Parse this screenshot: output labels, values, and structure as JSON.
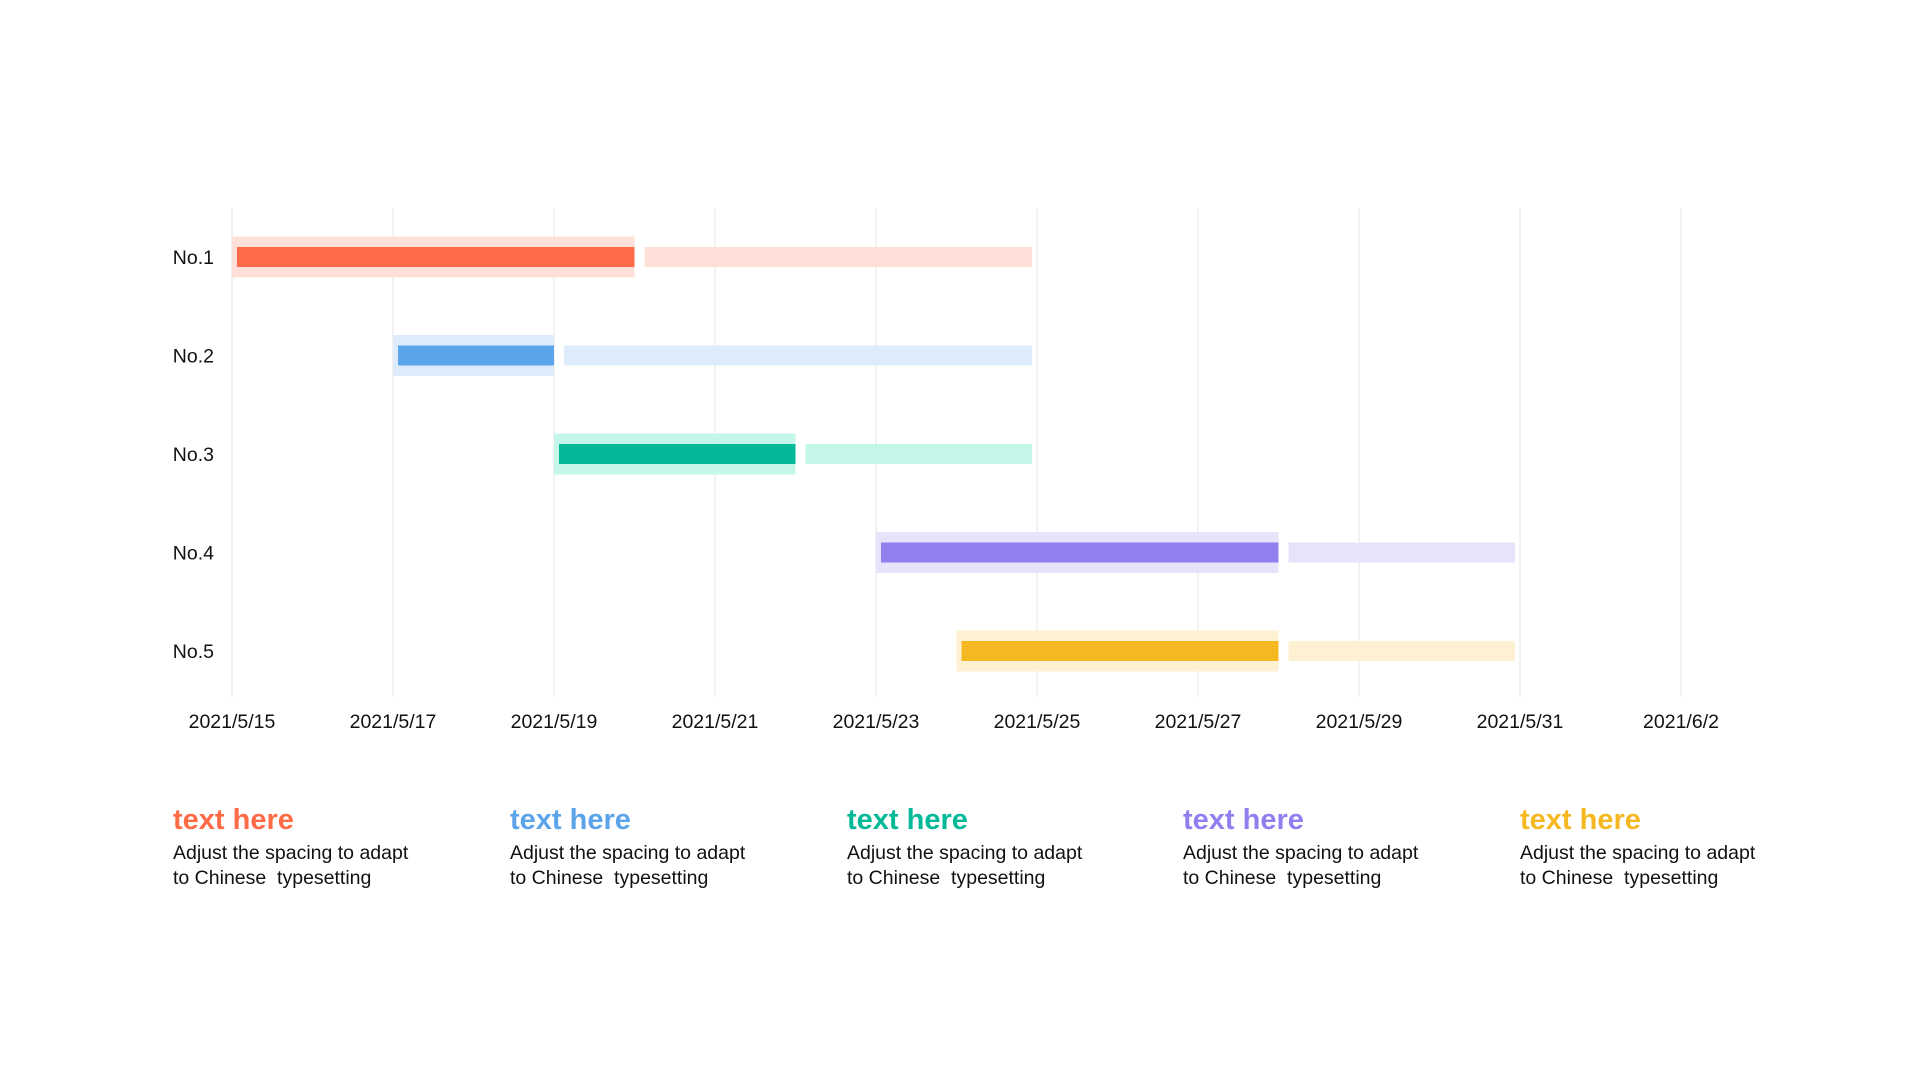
{
  "chart_data": {
    "type": "gantt",
    "x_ticks": [
      "2021/5/15",
      "2021/5/17",
      "2021/5/19",
      "2021/5/21",
      "2021/5/23",
      "2021/5/25",
      "2021/5/27",
      "2021/5/29",
      "2021/5/31",
      "2021/6/2"
    ],
    "xlim": [
      "2021/5/15",
      "2021/6/2"
    ],
    "grid": "vertical",
    "tasks": [
      {
        "label": "No.1",
        "start": "2021/5/15",
        "progress_end": "2021/5/20",
        "end": "2021/5/25",
        "color": "#FF6B47",
        "track_color": "#FFE0D9"
      },
      {
        "label": "No.2",
        "start": "2021/5/17",
        "progress_end": "2021/5/19",
        "end": "2021/5/25",
        "color": "#5BA4EA",
        "track_color": "#DDEBFA"
      },
      {
        "label": "No.3",
        "start": "2021/5/19",
        "progress_end": "2021/5/22",
        "end": "2021/5/25",
        "color": "#04B997",
        "track_color": "#C4F7EA"
      },
      {
        "label": "No.4",
        "start": "2021/5/23",
        "progress_end": "2021/5/28",
        "end": "2021/5/31",
        "color": "#907FEE",
        "track_color": "#E7E3FA"
      },
      {
        "label": "No.5",
        "start": "2021/5/24",
        "progress_end": "2021/5/28",
        "end": "2021/5/31",
        "color": "#F5B820",
        "track_color": "#FDF1D2"
      }
    ]
  },
  "captions": [
    {
      "title": "text here",
      "body": "Adjust the spacing to adapt\nto Chinese  typesetting",
      "color": "#FF6B47"
    },
    {
      "title": "text here",
      "body": "Adjust the spacing to adapt\nto Chinese  typesetting",
      "color": "#5BA4EA"
    },
    {
      "title": "text here",
      "body": "Adjust the spacing to adapt\nto Chinese  typesetting",
      "color": "#04B997"
    },
    {
      "title": "text here",
      "body": "Adjust the spacing to adapt\nto Chinese  typesetting",
      "color": "#907FEE"
    },
    {
      "title": "text here",
      "body": "Adjust the spacing to adapt\nto Chinese  typesetting",
      "color": "#F5B820"
    }
  ]
}
